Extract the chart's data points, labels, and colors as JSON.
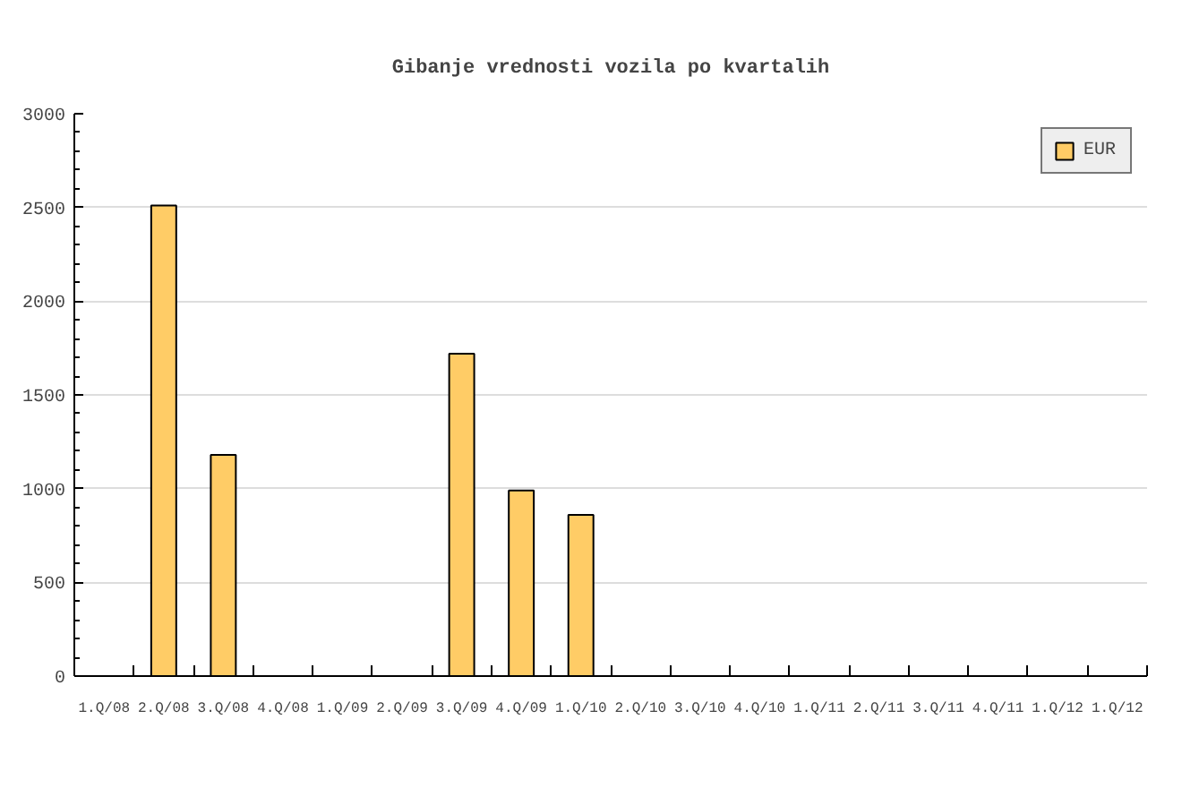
{
  "chart_data": {
    "type": "bar",
    "title": "Gibanje vrednosti vozila po kvartalih",
    "categories": [
      "1.Q/08",
      "2.Q/08",
      "3.Q/08",
      "4.Q/08",
      "1.Q/09",
      "2.Q/09",
      "3.Q/09",
      "4.Q/09",
      "1.Q/10",
      "2.Q/10",
      "3.Q/10",
      "4.Q/10",
      "1.Q/11",
      "2.Q/11",
      "3.Q/11",
      "4.Q/11",
      "1.Q/12",
      "1.Q/12"
    ],
    "series": [
      {
        "name": "EUR",
        "color": "#ffcc66",
        "values": [
          null,
          2510,
          1180,
          null,
          null,
          null,
          1720,
          990,
          860,
          null,
          null,
          null,
          null,
          null,
          null,
          null,
          null,
          null
        ]
      }
    ],
    "ylim": [
      0,
      3000
    ],
    "yticks": [
      0,
      500,
      1000,
      1500,
      2000,
      2500,
      3000
    ],
    "grid": "y",
    "legend": "top right"
  }
}
